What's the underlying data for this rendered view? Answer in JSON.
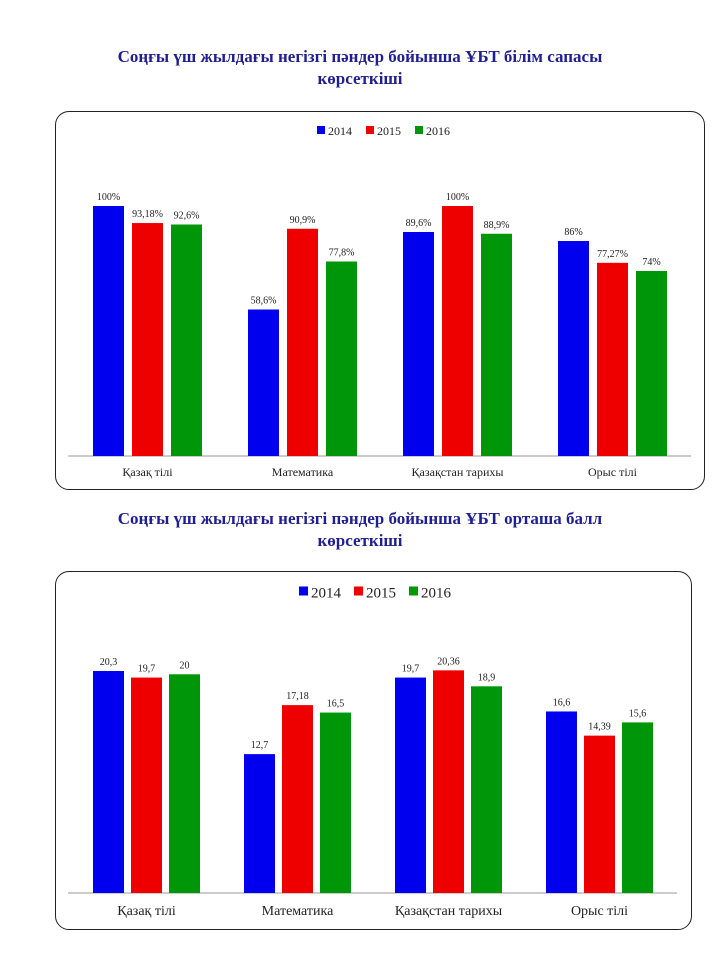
{
  "colors": {
    "2014": "#0000ee",
    "2015": "#ee0000",
    "2016": "#00960a",
    "title": "#1f1f8f"
  },
  "charts": [
    {
      "title_line1": "Соңғы үш жылдағы негізгі пәндер бойынша ҰБТ білім сапасы",
      "title_line2": "көрсеткіші"
    },
    {
      "title_line1": "Соңғы үш жылдағы негізгі пәндер бойынша ҰБТ орташа балл",
      "title_line2": "көрсеткіші"
    }
  ],
  "chart_data": [
    {
      "type": "bar",
      "title": "Соңғы үш жылдағы негізгі пәндер бойынша ҰБТ білім сапасы көрсеткіші",
      "categories": [
        "Қазақ тілі",
        "Математика",
        "Қазақстан тарихы",
        "Орыс тілі"
      ],
      "series": [
        {
          "name": "2014",
          "values": [
            100,
            58.6,
            89.6,
            86
          ],
          "labels": [
            "100%",
            "58,6%",
            "89,6%",
            "86%"
          ]
        },
        {
          "name": "2015",
          "values": [
            93.18,
            90.9,
            100,
            77.27
          ],
          "labels": [
            "93,18%",
            "90,9%",
            "100%",
            "77,27%"
          ]
        },
        {
          "name": "2016",
          "values": [
            92.6,
            77.8,
            88.9,
            74
          ],
          "labels": [
            "92,6%",
            "77,8%",
            "88,9%",
            "74%"
          ]
        }
      ],
      "ylim": [
        0,
        100
      ],
      "legend": "top-center",
      "grid": false
    },
    {
      "type": "bar",
      "title": "Соңғы үш жылдағы негізгі пәндер бойынша ҰБТ орташа балл көрсеткіші",
      "categories": [
        "Қазақ тілі",
        "Математика",
        "Қазақстан тарихы",
        "Орыс тілі"
      ],
      "series": [
        {
          "name": "2014",
          "values": [
            20.3,
            12.7,
            19.7,
            16.6
          ],
          "labels": [
            "20,3",
            "12,7",
            "19,7",
            "16,6"
          ]
        },
        {
          "name": "2015",
          "values": [
            19.7,
            17.18,
            20.36,
            14.39
          ],
          "labels": [
            "19,7",
            "17,18",
            "20,36",
            "14,39"
          ]
        },
        {
          "name": "2016",
          "values": [
            20,
            16.5,
            18.9,
            15.6
          ],
          "labels": [
            "20",
            "16,5",
            "18,9",
            "15,6"
          ]
        }
      ],
      "ylim": [
        0,
        20.3
      ],
      "legend": "top-center",
      "grid": false
    }
  ]
}
